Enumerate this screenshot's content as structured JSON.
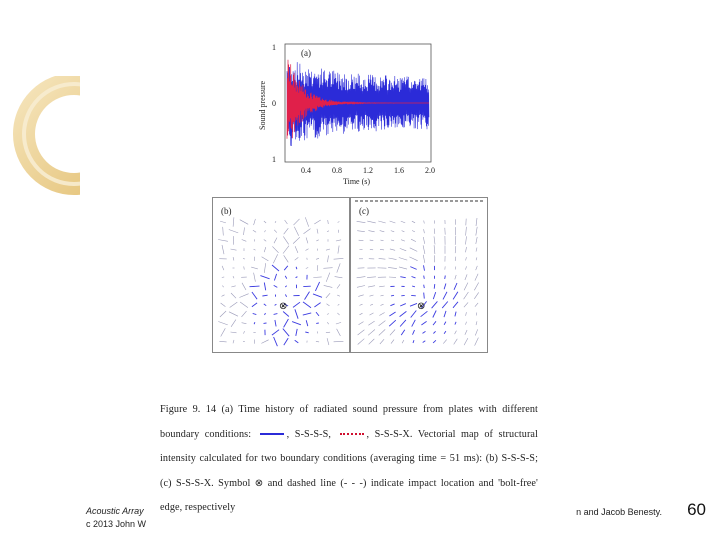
{
  "plot_a": {
    "panel_label": "(a)",
    "ylabel": "Sound pressure",
    "xlabel": "Time (s)",
    "y_ticks": [
      "1",
      "0",
      "1"
    ],
    "x_ticks": [
      "0.4",
      "0.8",
      "1.2",
      "1.6",
      "2.0"
    ],
    "colors": {
      "s_s_s_s": "#2b2bd8",
      "s_s_s_x": "#e0204a"
    }
  },
  "panel_b": {
    "label": "(b)",
    "symbol": "⊗"
  },
  "panel_c": {
    "label": "(c)",
    "symbol": "⊗"
  },
  "caption": {
    "part1": "Figure 9. 14 (a) Time history of radiated sound pressure from plates with different boundary conditions:",
    "part2": ", S-S-S-S,",
    "part3": ", S-S-S-X. Vectorial map of structural intensity calculated for two boundary conditions (averaging time = 51 ms): (b) S-S-S-S; (c) S-S-S-X. Symbol ⊗ and dashed line (- - -) indicate impact location and 'bolt-free' edge, respectively"
  },
  "footer": {
    "left_line1": "Acoustic Array",
    "left_line2": "c 2013 John W",
    "right": "n and Jacob Benesty.",
    "page_number": "60"
  }
}
